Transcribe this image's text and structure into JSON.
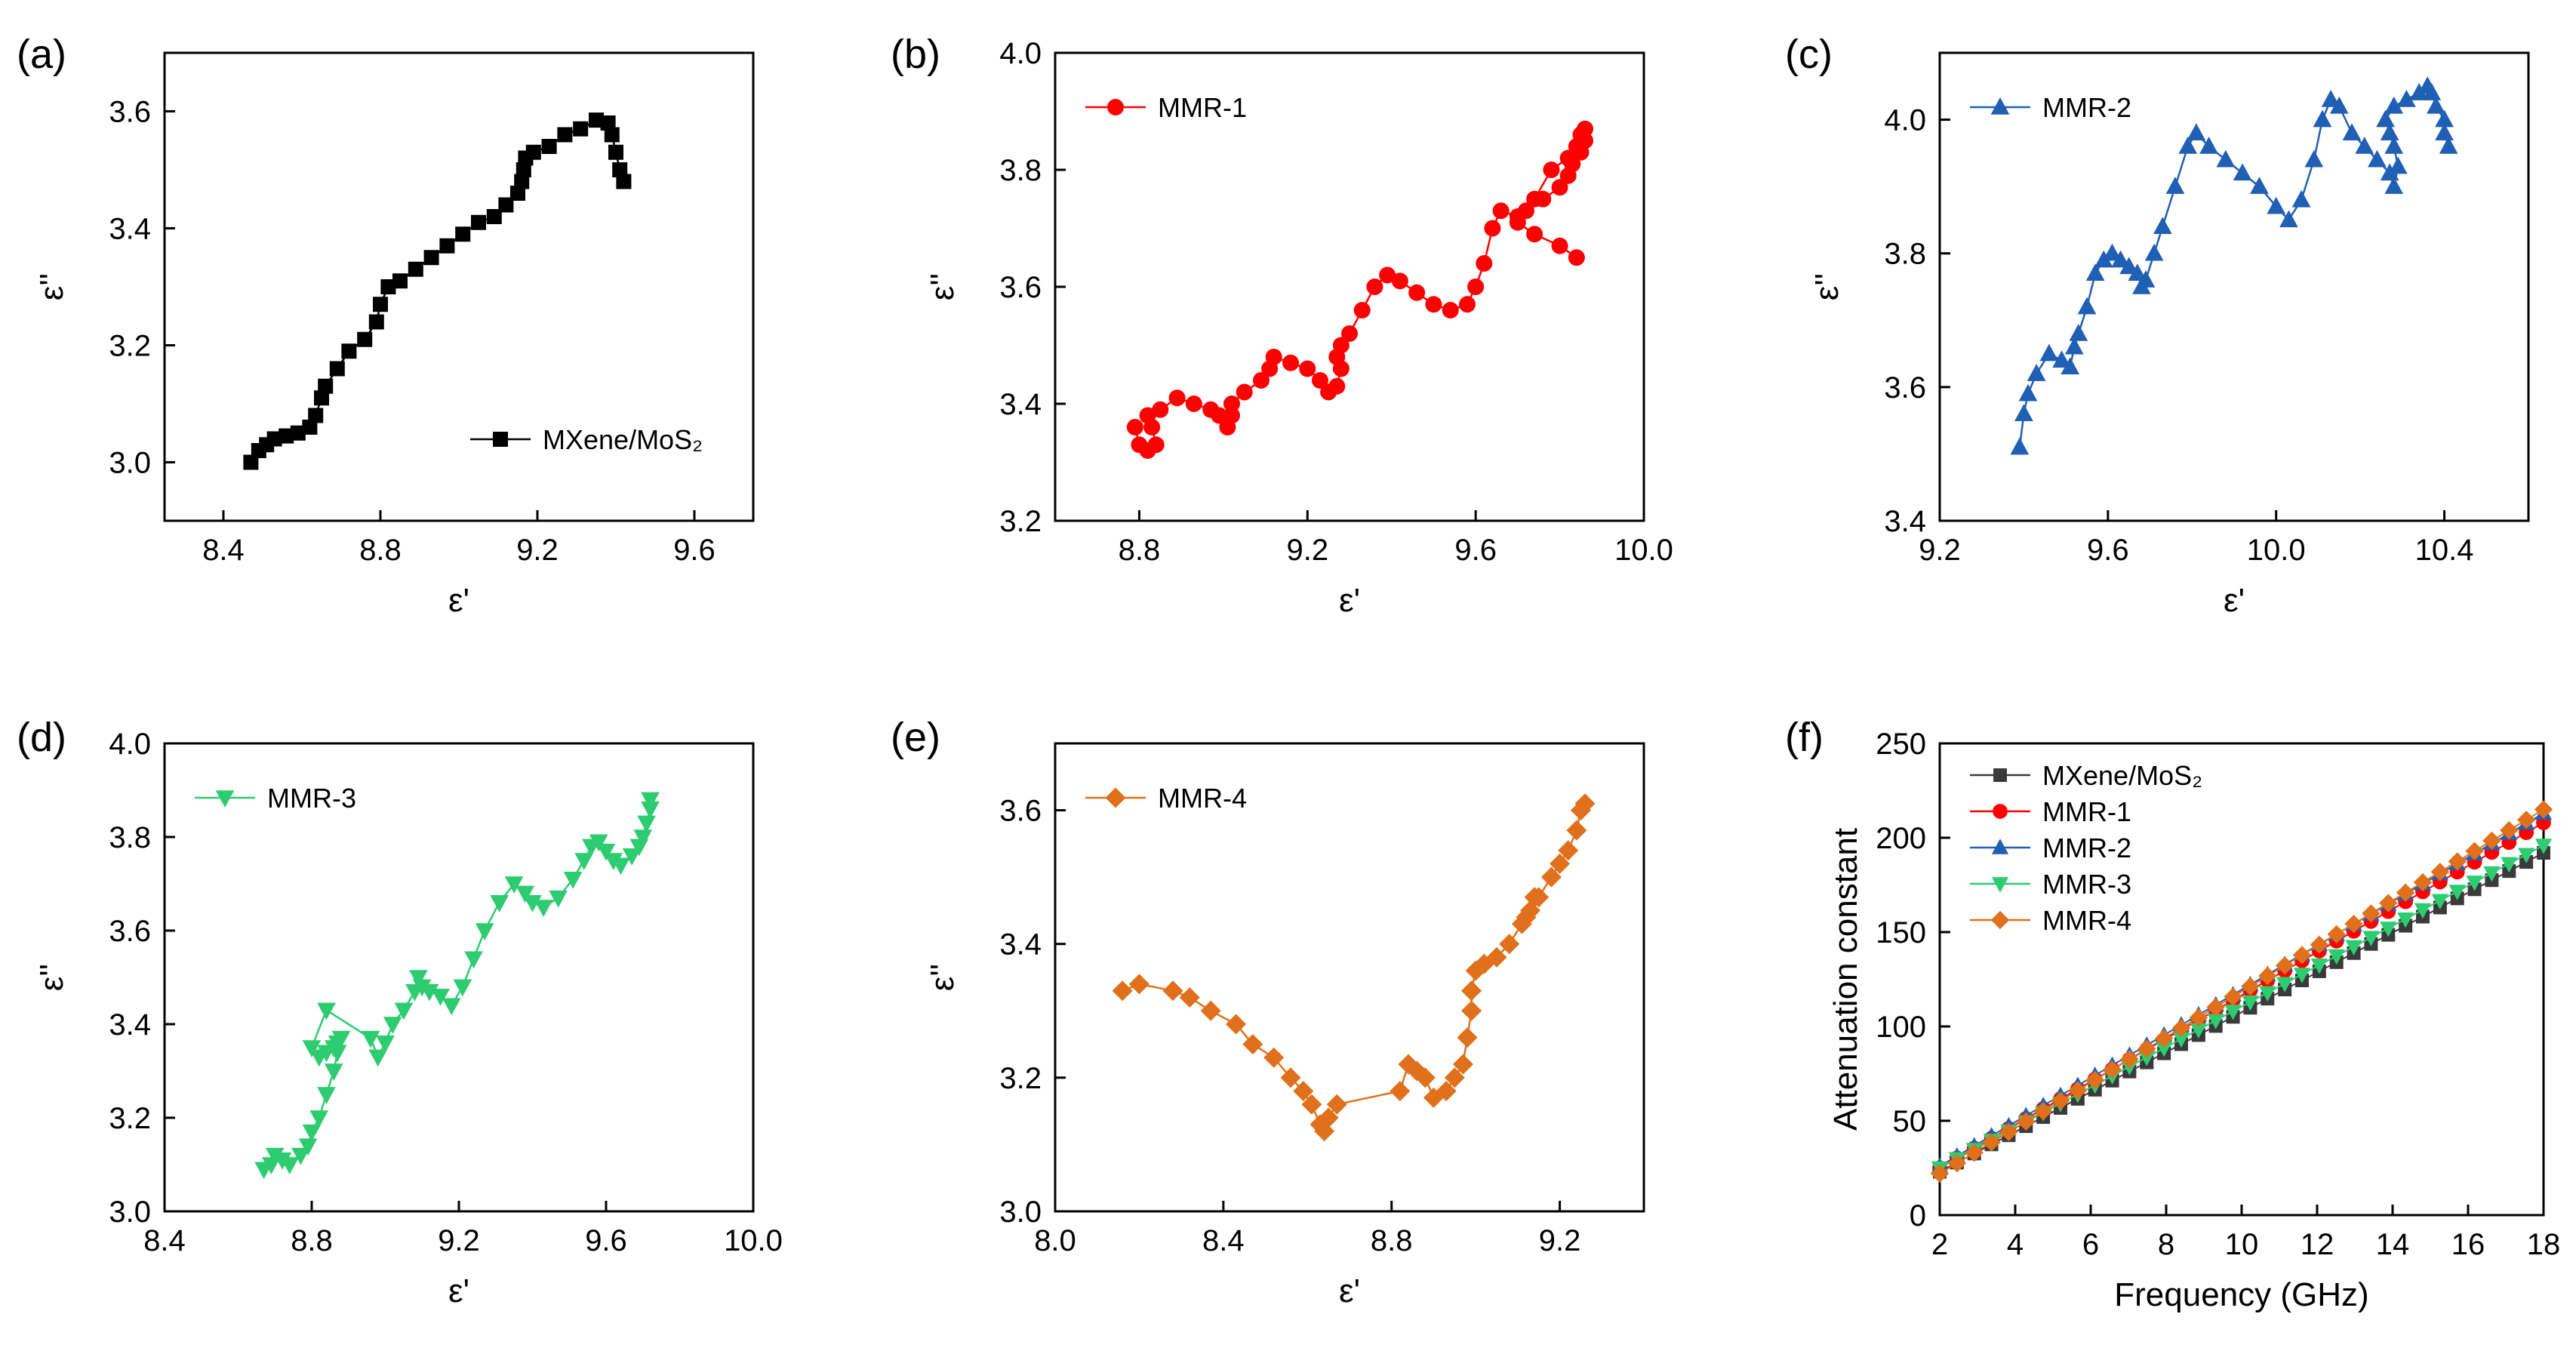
{
  "chart_data": [
    {
      "panel": "(a)",
      "type": "scatter",
      "xlabel": "ε'",
      "ylabel": "ε''",
      "xlim": [
        8.25,
        9.75
      ],
      "ylim": [
        2.9,
        3.7
      ],
      "xticks": [
        "8.4",
        "8.8",
        "9.2",
        "9.6"
      ],
      "xtick_values": [
        8.4,
        8.8,
        9.2,
        9.6
      ],
      "yticks": [
        "3.0",
        "3.2",
        "3.4",
        "3.6"
      ],
      "ytick_values": [
        3.0,
        3.2,
        3.4,
        3.6
      ],
      "legend_position": "bottom-right",
      "series": [
        {
          "name": "MXene/MoS₂",
          "color": "#000000",
          "marker": "square",
          "x": [
            8.47,
            8.49,
            8.51,
            8.53,
            8.56,
            8.59,
            8.62,
            8.635,
            8.65,
            8.66,
            8.69,
            8.72,
            8.76,
            8.79,
            8.8,
            8.82,
            8.85,
            8.89,
            8.93,
            8.97,
            9.01,
            9.05,
            9.09,
            9.12,
            9.15,
            9.16,
            9.165,
            9.17,
            9.19,
            9.23,
            9.27,
            9.31,
            9.35,
            9.38,
            9.39,
            9.4,
            9.41,
            9.42
          ],
          "y": [
            3.0,
            3.02,
            3.03,
            3.04,
            3.045,
            3.05,
            3.06,
            3.08,
            3.11,
            3.13,
            3.16,
            3.19,
            3.21,
            3.24,
            3.27,
            3.3,
            3.31,
            3.33,
            3.35,
            3.37,
            3.39,
            3.41,
            3.42,
            3.44,
            3.46,
            3.48,
            3.5,
            3.52,
            3.53,
            3.54,
            3.56,
            3.57,
            3.585,
            3.58,
            3.56,
            3.53,
            3.5,
            3.48
          ]
        }
      ]
    },
    {
      "panel": "(b)",
      "type": "scatter",
      "xlabel": "ε'",
      "ylabel": "ε''",
      "xlim": [
        8.6,
        10.0
      ],
      "ylim": [
        3.2,
        4.0
      ],
      "xticks": [
        "8.8",
        "9.2",
        "9.6",
        "10.0"
      ],
      "xtick_values": [
        8.8,
        9.2,
        9.6,
        10.0
      ],
      "yticks": [
        "3.2",
        "3.4",
        "3.6",
        "3.8",
        "4.0"
      ],
      "ytick_values": [
        3.2,
        3.4,
        3.6,
        3.8,
        4.0
      ],
      "legend_position": "top-left",
      "series": [
        {
          "name": "MMR-1",
          "color": "#ff0000",
          "marker": "circle",
          "x": [
            8.79,
            8.8,
            8.82,
            8.84,
            8.83,
            8.82,
            8.85,
            8.89,
            8.93,
            8.97,
            8.99,
            9.01,
            9.02,
            9.02,
            9.05,
            9.09,
            9.11,
            9.12,
            9.16,
            9.2,
            9.23,
            9.25,
            9.27,
            9.28,
            9.27,
            9.28,
            9.3,
            9.33,
            9.36,
            9.39,
            9.42,
            9.46,
            9.5,
            9.54,
            9.58,
            9.6,
            9.62,
            9.64,
            9.66,
            9.7,
            9.74,
            9.78,
            9.82,
            9.84,
            9.85,
            9.86,
            9.86,
            9.85,
            9.83,
            9.82,
            9.8,
            9.76,
            9.72,
            9.7,
            9.74,
            9.8,
            9.84
          ],
          "y": [
            3.36,
            3.33,
            3.32,
            3.33,
            3.36,
            3.38,
            3.39,
            3.41,
            3.4,
            3.39,
            3.38,
            3.36,
            3.38,
            3.4,
            3.42,
            3.44,
            3.46,
            3.48,
            3.47,
            3.46,
            3.44,
            3.42,
            3.43,
            3.46,
            3.48,
            3.5,
            3.52,
            3.56,
            3.6,
            3.62,
            3.61,
            3.59,
            3.57,
            3.56,
            3.57,
            3.6,
            3.64,
            3.7,
            3.73,
            3.72,
            3.75,
            3.8,
            3.82,
            3.84,
            3.86,
            3.87,
            3.85,
            3.83,
            3.81,
            3.79,
            3.77,
            3.75,
            3.73,
            3.71,
            3.69,
            3.67,
            3.65
          ]
        }
      ]
    },
    {
      "panel": "(c)",
      "type": "scatter",
      "xlabel": "ε'",
      "ylabel": "ε''",
      "xlim": [
        9.2,
        10.6
      ],
      "ylim": [
        3.4,
        4.1
      ],
      "xticks": [
        "9.2",
        "9.6",
        "10.0",
        "10.4"
      ],
      "xtick_values": [
        9.2,
        9.6,
        10.0,
        10.4
      ],
      "yticks": [
        "3.4",
        "3.6",
        "3.8",
        "4.0"
      ],
      "ytick_values": [
        3.4,
        3.6,
        3.8,
        4.0
      ],
      "legend_position": "top-left",
      "series": [
        {
          "name": "MMR-2",
          "color": "#1f5fb4",
          "marker": "triangle-up",
          "x": [
            9.39,
            9.4,
            9.41,
            9.43,
            9.46,
            9.49,
            9.51,
            9.52,
            9.53,
            9.55,
            9.57,
            9.59,
            9.61,
            9.63,
            9.65,
            9.67,
            9.68,
            9.69,
            9.71,
            9.73,
            9.76,
            9.79,
            9.81,
            9.84,
            9.88,
            9.92,
            9.96,
            10.0,
            10.03,
            10.06,
            10.09,
            10.11,
            10.13,
            10.15,
            10.18,
            10.21,
            10.24,
            10.27,
            10.28,
            10.29,
            10.28,
            10.27,
            10.26,
            10.28,
            10.31,
            10.34,
            10.36,
            10.37,
            10.38,
            10.4,
            10.4,
            10.41
          ],
          "y": [
            3.51,
            3.56,
            3.59,
            3.62,
            3.65,
            3.64,
            3.63,
            3.66,
            3.68,
            3.72,
            3.77,
            3.79,
            3.8,
            3.79,
            3.78,
            3.77,
            3.75,
            3.76,
            3.8,
            3.84,
            3.9,
            3.96,
            3.98,
            3.96,
            3.94,
            3.92,
            3.9,
            3.87,
            3.85,
            3.88,
            3.94,
            4.0,
            4.03,
            4.02,
            3.98,
            3.96,
            3.94,
            3.92,
            3.9,
            3.93,
            3.96,
            3.98,
            4.0,
            4.02,
            4.03,
            4.04,
            4.05,
            4.04,
            4.02,
            4.0,
            3.98,
            3.96
          ]
        }
      ]
    },
    {
      "panel": "(d)",
      "type": "scatter",
      "xlabel": "ε'",
      "ylabel": "ε''",
      "xlim": [
        8.4,
        10.0
      ],
      "ylim": [
        3.0,
        4.0
      ],
      "xticks": [
        "8.4",
        "8.8",
        "9.2",
        "9.6",
        "10.0"
      ],
      "xtick_values": [
        8.4,
        8.8,
        9.2,
        9.6,
        10.0
      ],
      "yticks": [
        "3.0",
        "3.2",
        "3.4",
        "3.6",
        "3.8",
        "4.0"
      ],
      "ytick_values": [
        3.0,
        3.2,
        3.4,
        3.6,
        3.8,
        4.0
      ],
      "legend_position": "top-left",
      "series": [
        {
          "name": "MMR-3",
          "color": "#2ecc71",
          "marker": "triangle-down",
          "x": [
            8.67,
            8.69,
            8.7,
            8.72,
            8.74,
            8.77,
            8.79,
            8.8,
            8.82,
            8.84,
            8.86,
            8.87,
            8.88,
            8.87,
            8.86,
            8.84,
            8.82,
            8.8,
            8.84,
            8.96,
            8.98,
            9.0,
            9.02,
            9.05,
            9.08,
            9.09,
            9.1,
            9.12,
            9.15,
            9.18,
            9.21,
            9.24,
            9.27,
            9.31,
            9.35,
            9.38,
            9.4,
            9.43,
            9.47,
            9.51,
            9.54,
            9.56,
            9.58,
            9.6,
            9.62,
            9.64,
            9.67,
            9.69,
            9.7,
            9.71,
            9.72,
            9.72
          ],
          "y": [
            3.09,
            3.1,
            3.12,
            3.11,
            3.1,
            3.12,
            3.14,
            3.17,
            3.2,
            3.25,
            3.3,
            3.34,
            3.37,
            3.36,
            3.35,
            3.34,
            3.33,
            3.35,
            3.43,
            3.37,
            3.33,
            3.36,
            3.4,
            3.43,
            3.47,
            3.5,
            3.48,
            3.47,
            3.46,
            3.44,
            3.48,
            3.54,
            3.6,
            3.66,
            3.7,
            3.68,
            3.66,
            3.65,
            3.67,
            3.71,
            3.75,
            3.78,
            3.79,
            3.77,
            3.75,
            3.74,
            3.76,
            3.78,
            3.8,
            3.83,
            3.86,
            3.88
          ]
        }
      ]
    },
    {
      "panel": "(e)",
      "type": "scatter",
      "xlabel": "ε'",
      "ylabel": "ε''",
      "xlim": [
        8.0,
        9.4
      ],
      "ylim": [
        3.0,
        3.7
      ],
      "xticks": [
        "8.0",
        "8.4",
        "8.8",
        "9.2"
      ],
      "xtick_values": [
        8.0,
        8.4,
        8.8,
        9.2
      ],
      "yticks": [
        "3.0",
        "3.2",
        "3.4",
        "3.6"
      ],
      "ytick_values": [
        3.0,
        3.2,
        3.4,
        3.6
      ],
      "legend_position": "top-left",
      "series": [
        {
          "name": "MMR-4",
          "color": "#e0701c",
          "marker": "diamond",
          "x": [
            8.16,
            8.2,
            8.28,
            8.32,
            8.37,
            8.43,
            8.47,
            8.52,
            8.56,
            8.59,
            8.61,
            8.63,
            8.64,
            8.65,
            8.67,
            8.82,
            8.84,
            8.86,
            8.88,
            8.9,
            8.93,
            8.95,
            8.97,
            8.98,
            8.99,
            8.99,
            9.0,
            9.02,
            9.05,
            9.08,
            9.11,
            9.13,
            9.14,
            9.12,
            9.15,
            9.18,
            9.2,
            9.22,
            9.24,
            9.25,
            9.26
          ],
          "y": [
            3.33,
            3.34,
            3.33,
            3.32,
            3.3,
            3.28,
            3.25,
            3.23,
            3.2,
            3.18,
            3.16,
            3.13,
            3.12,
            3.14,
            3.16,
            3.18,
            3.22,
            3.21,
            3.2,
            3.17,
            3.18,
            3.2,
            3.22,
            3.26,
            3.3,
            3.33,
            3.36,
            3.37,
            3.38,
            3.4,
            3.43,
            3.45,
            3.47,
            3.44,
            3.47,
            3.5,
            3.52,
            3.54,
            3.57,
            3.6,
            3.61
          ]
        }
      ]
    },
    {
      "panel": "(f)",
      "type": "line",
      "xlabel": "Frequency (GHz)",
      "ylabel": "Attenuation constant",
      "xlim": [
        2,
        18
      ],
      "ylim": [
        0,
        250
      ],
      "xticks": [
        "2",
        "4",
        "6",
        "8",
        "10",
        "12",
        "14",
        "16",
        "18"
      ],
      "xtick_values": [
        2,
        4,
        6,
        8,
        10,
        12,
        14,
        16,
        18
      ],
      "yticks": [
        "0",
        "50",
        "100",
        "150",
        "200",
        "250"
      ],
      "ytick_values": [
        0,
        50,
        100,
        150,
        200,
        250
      ],
      "legend_position": "top-left",
      "x_start": 2,
      "x_end": 18,
      "n_points": 36,
      "series": [
        {
          "name": "MXene/MoS₂",
          "color": "#3a3a3a",
          "marker": "square",
          "start": 23,
          "end": 192
        },
        {
          "name": "MMR-1",
          "color": "#ff0000",
          "marker": "circle",
          "start": 25,
          "end": 208
        },
        {
          "name": "MMR-2",
          "color": "#1f5fb4",
          "marker": "triangle-up",
          "start": 26,
          "end": 213
        },
        {
          "name": "MMR-3",
          "color": "#2ecc71",
          "marker": "triangle-down",
          "start": 25,
          "end": 196
        },
        {
          "name": "MMR-4",
          "color": "#e0701c",
          "marker": "diamond",
          "start": 22,
          "end": 215
        }
      ]
    }
  ]
}
